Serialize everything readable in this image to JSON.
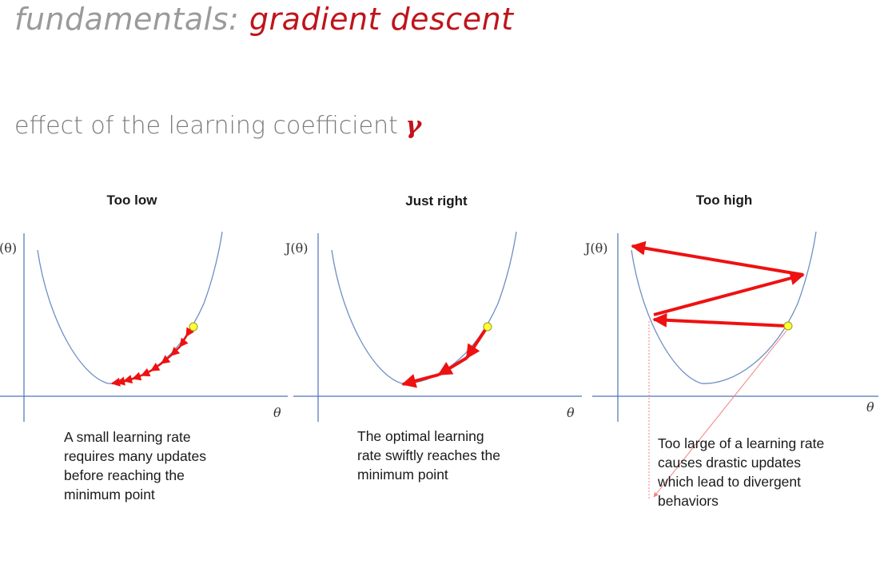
{
  "header": {
    "title_prefix": "fundamentals: ",
    "title_accent": "gradient descent",
    "subtitle_text": "effect of the learning coefficient ",
    "subtitle_symbol": "γ"
  },
  "panels": [
    {
      "title": "Too low",
      "y_label": "(θ)",
      "x_label": "θ",
      "caption": [
        "A small learning rate",
        "requires many updates",
        "before reaching the",
        "minimum point"
      ]
    },
    {
      "title": "Just right",
      "y_label": "J(θ)",
      "x_label": "θ",
      "caption": [
        "The optimal learning",
        "rate swiftly reaches the",
        "minimum point"
      ]
    },
    {
      "title": "Too high",
      "y_label": "J(θ)",
      "x_label": "θ",
      "caption": [
        "Too large of a learning rate",
        "causes drastic updates",
        "which lead to divergent",
        "behaviors"
      ]
    }
  ],
  "colors": {
    "curve": "#6f8fc4",
    "axis": "#4f73b8",
    "arrow": "#ee1111",
    "start_point": "#ffff33",
    "accent": "#c0141b"
  }
}
